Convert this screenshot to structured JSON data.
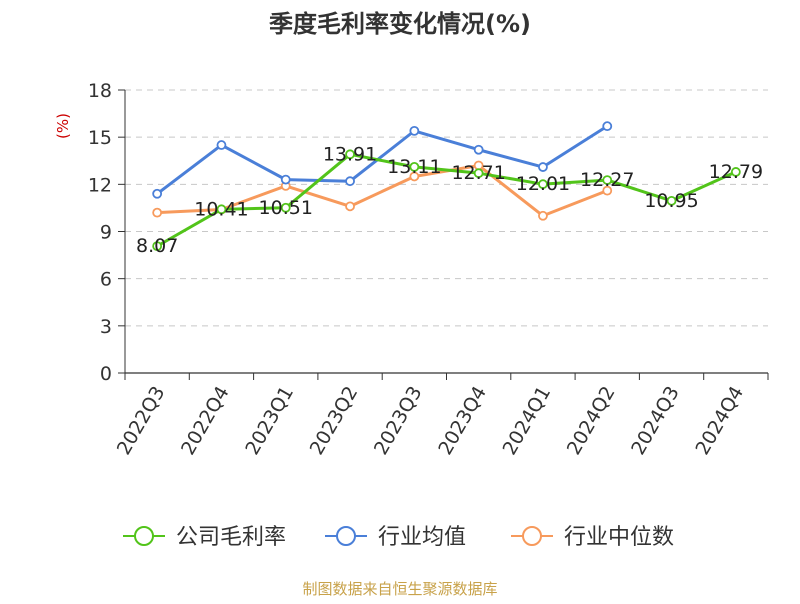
{
  "title": "季度毛利率变化情况(%)",
  "source_text": "制图数据来自恒生聚源数据库",
  "chart_data": {
    "type": "line",
    "title": "季度毛利率变化情况(%)",
    "ylabel": "(%)",
    "xlabel": "",
    "ylim": [
      0,
      18
    ],
    "yticks": [
      0,
      3,
      6,
      9,
      12,
      15,
      18
    ],
    "grid": true,
    "legend_position": "bottom",
    "categories": [
      "2022Q3",
      "2022Q4",
      "2023Q1",
      "2023Q2",
      "2023Q3",
      "2023Q4",
      "2024Q1",
      "2024Q2",
      "2024Q3",
      "2024Q4"
    ],
    "series": [
      {
        "name": "公司毛利率",
        "color": "#52c41a",
        "values": [
          8.07,
          10.41,
          10.51,
          13.91,
          13.11,
          12.71,
          12.01,
          12.27,
          10.95,
          12.79
        ],
        "labels": [
          "8.07",
          "10.41",
          "10.51",
          "13.91",
          "13.11",
          "12.71",
          "12.01",
          "12.27",
          "10.95",
          "12.79"
        ]
      },
      {
        "name": "行业均值",
        "color": "#4a7fd8",
        "values": [
          11.4,
          14.5,
          12.3,
          12.2,
          15.4,
          14.2,
          13.1,
          15.7,
          null,
          null
        ]
      },
      {
        "name": "行业中位数",
        "color": "#f79a5c",
        "values": [
          10.2,
          10.4,
          11.9,
          10.6,
          12.5,
          13.2,
          10.0,
          11.6,
          null,
          null
        ]
      }
    ]
  }
}
